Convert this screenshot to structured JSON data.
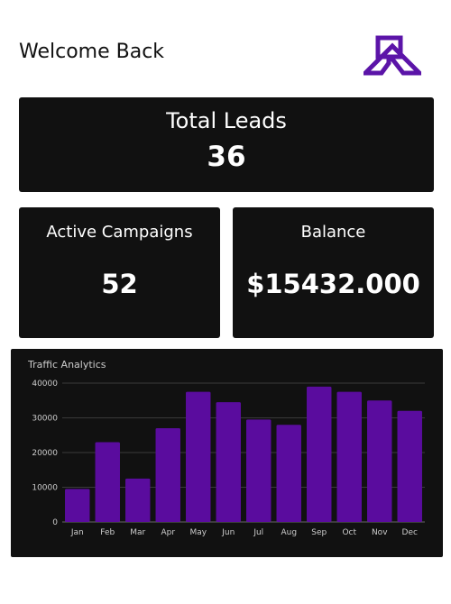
{
  "header": {
    "welcome": "Welcome Back",
    "logo_icon": "house-r-logo-icon"
  },
  "cards": {
    "leads": {
      "label": "Total Leads",
      "value": "36"
    },
    "campaigns": {
      "label": "Active Campaigns",
      "value": "52"
    },
    "balance": {
      "label": "Balance",
      "value": "$15432.000"
    }
  },
  "colors": {
    "card_bg": "#111111",
    "accent": "#5a0c9e",
    "logo": "#5b14a8"
  },
  "chart_data": {
    "type": "bar",
    "title": "Traffic Analytics",
    "categories": [
      "Jan",
      "Feb",
      "Mar",
      "Apr",
      "May",
      "Jun",
      "Jul",
      "Aug",
      "Sep",
      "Oct",
      "Nov",
      "Dec"
    ],
    "values": [
      9500,
      23000,
      12500,
      27000,
      37500,
      34500,
      29500,
      28000,
      39000,
      37500,
      35000,
      32000
    ],
    "ylim": [
      0,
      40000
    ],
    "yticks": [
      "0",
      "10000",
      "20000",
      "30000",
      "40000"
    ],
    "grid": true,
    "xlabel": "",
    "ylabel": ""
  }
}
